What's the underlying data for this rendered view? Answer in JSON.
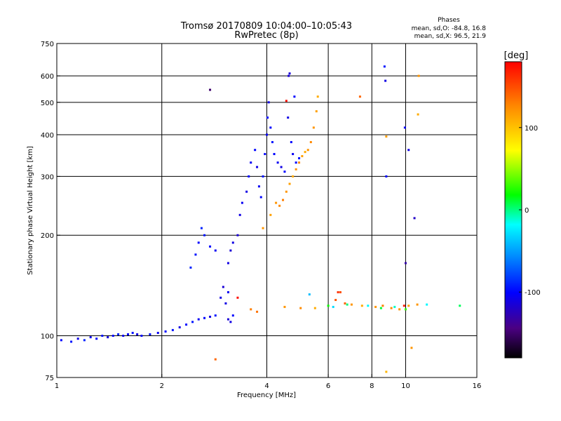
{
  "header": {
    "title_line1": "Tromsø 20170809 10:04:00–10:05:43",
    "title_line2": "RwPretec (8p)",
    "stats_heading": "Phases",
    "stats_line1": "mean, sd,O: -84.8, 16.8",
    "stats_line2": "mean, sd,X:  96.5, 21.9"
  },
  "colorbar": {
    "unit_label": "[deg]",
    "ticks": [
      {
        "value": 100,
        "label": "100"
      },
      {
        "value": 0,
        "label": "0"
      },
      {
        "value": -100,
        "label": "-100"
      }
    ],
    "range": [
      -180,
      180
    ],
    "colors": [
      "#000000",
      "#4b0082",
      "#0000ff",
      "#0088ff",
      "#00ffff",
      "#00ff00",
      "#ffff00",
      "#ff8800",
      "#ff0000"
    ]
  },
  "chart_data": {
    "type": "scatter",
    "title": "Tromsø 20170809 10:04:00–10:05:43",
    "subtitle": "RwPretec (8p)",
    "xlabel": "Frequency [MHz]",
    "ylabel": "Stationary phase Virtual Height [km]",
    "x_scale": "log",
    "y_scale": "log",
    "xlim": [
      1,
      16
    ],
    "ylim": [
      75,
      750
    ],
    "x_ticks": [
      {
        "value": 1,
        "label": "1"
      },
      {
        "value": 2,
        "label": "2"
      },
      {
        "value": 4,
        "label": "4"
      },
      {
        "value": 6,
        "label": "6"
      },
      {
        "value": 8,
        "label": "8"
      },
      {
        "value": 10,
        "label": "10"
      },
      {
        "value": 16,
        "label": "16"
      }
    ],
    "y_ticks": [
      {
        "value": 75,
        "label": "75"
      },
      {
        "value": 100,
        "label": "100"
      },
      {
        "value": 200,
        "label": "200"
      },
      {
        "value": 300,
        "label": "300"
      },
      {
        "value": 400,
        "label": "400"
      },
      {
        "value": 500,
        "label": "500"
      },
      {
        "value": 600,
        "label": "600"
      },
      {
        "value": 750,
        "label": "750"
      }
    ],
    "x_gridlines": [
      2,
      4,
      6,
      8,
      10
    ],
    "y_gridlines": [
      100,
      200,
      300,
      400,
      500,
      600
    ],
    "grid": true,
    "color_by": "phase_deg",
    "series": [
      {
        "points": [
          [
            1.03,
            97,
            -100
          ],
          [
            1.1,
            96,
            -95
          ],
          [
            1.15,
            98,
            -110
          ],
          [
            1.2,
            97,
            -90
          ],
          [
            1.25,
            99,
            -105
          ],
          [
            1.3,
            98,
            -100
          ],
          [
            1.35,
            100,
            -95
          ],
          [
            1.4,
            99,
            -110
          ],
          [
            1.45,
            100,
            -100
          ],
          [
            1.5,
            101,
            -90
          ],
          [
            1.55,
            100,
            -105
          ],
          [
            1.6,
            101,
            -100
          ],
          [
            1.65,
            102,
            -95
          ],
          [
            1.7,
            101,
            -110
          ],
          [
            1.75,
            100,
            -100
          ],
          [
            1.85,
            101,
            -95
          ],
          [
            1.95,
            102,
            -105
          ],
          [
            2.05,
            103,
            -100
          ],
          [
            2.15,
            104,
            -95
          ],
          [
            2.25,
            106,
            -110
          ],
          [
            2.35,
            108,
            -100
          ],
          [
            2.45,
            110,
            -95
          ],
          [
            2.55,
            112,
            -105
          ],
          [
            2.65,
            113,
            -100
          ],
          [
            2.75,
            114,
            -110
          ],
          [
            2.85,
            115,
            -95
          ],
          [
            2.42,
            160,
            -90
          ],
          [
            2.5,
            175,
            -95
          ],
          [
            2.55,
            190,
            -100
          ],
          [
            2.6,
            210,
            -90
          ],
          [
            2.65,
            200,
            -95
          ],
          [
            2.75,
            185,
            -100
          ],
          [
            2.85,
            180,
            -105
          ],
          [
            2.95,
            130,
            -110
          ],
          [
            3.0,
            140,
            -115
          ],
          [
            3.05,
            125,
            -110
          ],
          [
            3.1,
            135,
            -105
          ],
          [
            3.1,
            112,
            -115
          ],
          [
            3.15,
            110,
            -110
          ],
          [
            3.2,
            115,
            -100
          ],
          [
            3.1,
            165,
            -110
          ],
          [
            3.15,
            180,
            -115
          ],
          [
            3.2,
            190,
            -110
          ],
          [
            3.3,
            200,
            -115
          ],
          [
            3.35,
            230,
            -110
          ],
          [
            3.4,
            250,
            -105
          ],
          [
            3.5,
            270,
            -110
          ],
          [
            3.55,
            300,
            -100
          ],
          [
            3.6,
            330,
            -105
          ],
          [
            3.7,
            360,
            -100
          ],
          [
            3.75,
            320,
            -110
          ],
          [
            3.8,
            280,
            -105
          ],
          [
            3.85,
            260,
            -100
          ],
          [
            3.9,
            300,
            -95
          ],
          [
            3.95,
            350,
            -100
          ],
          [
            4.0,
            400,
            -105
          ],
          [
            4.02,
            450,
            -100
          ],
          [
            4.05,
            500,
            -110
          ],
          [
            4.1,
            420,
            -100
          ],
          [
            4.15,
            380,
            -95
          ],
          [
            4.2,
            350,
            -100
          ],
          [
            4.3,
            330,
            -105
          ],
          [
            4.4,
            320,
            -110
          ],
          [
            4.5,
            310,
            -100
          ],
          [
            4.6,
            450,
            -110
          ],
          [
            4.62,
            600,
            -115
          ],
          [
            4.7,
            380,
            -100
          ],
          [
            4.75,
            350,
            -105
          ],
          [
            4.85,
            330,
            -100
          ],
          [
            4.95,
            340,
            -95
          ],
          [
            4.65,
            610,
            -115
          ],
          [
            4.8,
            520,
            -100
          ],
          [
            8.7,
            640,
            -95
          ],
          [
            8.75,
            580,
            -110
          ],
          [
            8.8,
            300,
            -100
          ],
          [
            9.95,
            420,
            -105
          ],
          [
            10.2,
            360,
            -110
          ],
          [
            10.6,
            225,
            -120
          ],
          [
            10.0,
            165,
            -130
          ]
        ]
      },
      {
        "points": [
          [
            4.25,
            250,
            120
          ],
          [
            4.35,
            245,
            125
          ],
          [
            4.45,
            255,
            130
          ],
          [
            4.55,
            270,
            120
          ],
          [
            4.65,
            285,
            115
          ],
          [
            4.75,
            300,
            110
          ],
          [
            4.85,
            315,
            120
          ],
          [
            4.95,
            330,
            125
          ],
          [
            5.05,
            345,
            115
          ],
          [
            5.15,
            355,
            110
          ],
          [
            5.25,
            360,
            120
          ],
          [
            5.35,
            380,
            125
          ],
          [
            5.45,
            420,
            120
          ],
          [
            5.55,
            470,
            115
          ],
          [
            5.6,
            520,
            110
          ],
          [
            4.1,
            230,
            115
          ],
          [
            3.9,
            210,
            120
          ],
          [
            3.6,
            120,
            130
          ],
          [
            3.75,
            118,
            135
          ],
          [
            4.5,
            122,
            120
          ],
          [
            5.0,
            121,
            125
          ],
          [
            5.5,
            121,
            110
          ],
          [
            6.3,
            128,
            145
          ],
          [
            6.5,
            135,
            150
          ],
          [
            6.7,
            125,
            140
          ],
          [
            7.0,
            124,
            120
          ],
          [
            7.5,
            123,
            110
          ],
          [
            8.2,
            122,
            120
          ],
          [
            8.6,
            123,
            130
          ],
          [
            9.1,
            121,
            125
          ],
          [
            9.6,
            120,
            120
          ],
          [
            10.2,
            123,
            115
          ],
          [
            10.8,
            124,
            120
          ],
          [
            10.9,
            600,
            120
          ],
          [
            10.85,
            460,
            110
          ],
          [
            7.4,
            520,
            140
          ],
          [
            8.8,
            395,
            115
          ]
        ]
      },
      {
        "points": [
          [
            6.0,
            123,
            20
          ],
          [
            6.2,
            122,
            -30
          ],
          [
            6.8,
            124,
            0
          ],
          [
            7.8,
            123,
            -20
          ],
          [
            8.5,
            121,
            10
          ],
          [
            9.3,
            122,
            -10
          ],
          [
            10.0,
            120,
            30
          ],
          [
            11.5,
            124,
            -20
          ],
          [
            14.3,
            123,
            5
          ],
          [
            5.3,
            133,
            -40
          ]
        ]
      },
      {
        "points": [
          [
            2.85,
            85,
            140
          ],
          [
            2.75,
            545,
            -150
          ],
          [
            3.3,
            130,
            175
          ],
          [
            4.55,
            505,
            175
          ],
          [
            9.9,
            123,
            170
          ],
          [
            6.4,
            135,
            160
          ],
          [
            10.4,
            92,
            120
          ],
          [
            8.8,
            78,
            105
          ]
        ]
      }
    ]
  }
}
